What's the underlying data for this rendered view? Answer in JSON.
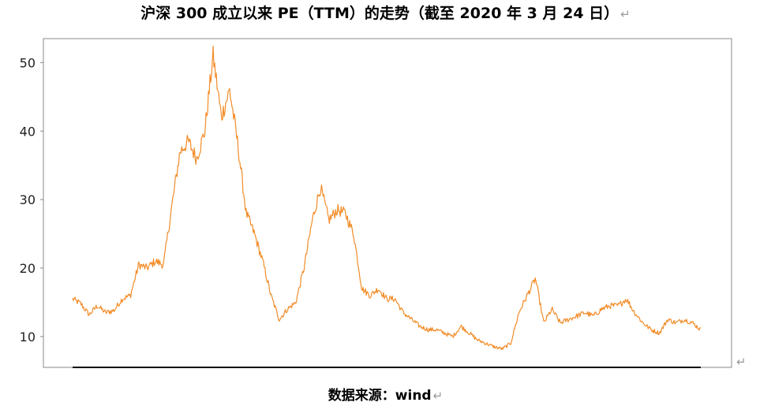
{
  "title": "沪深 300 成立以来 PE（TTM）的走势（截至 2020 年 3 月 24 日）",
  "source": "数据来源：wind",
  "return_mark": "↵",
  "colors": {
    "line": "#f28c28",
    "frame": "#888888",
    "baseline": "#000000"
  },
  "chart_data": {
    "type": "line",
    "title": "",
    "xlabel": "",
    "ylabel": "",
    "ylim": [
      5.5,
      53.5
    ],
    "yticks": [
      10,
      20,
      30,
      40,
      50
    ],
    "grid": false,
    "legend": "none",
    "x_start": "2005-04-08",
    "x_end": "2020-03-24",
    "series": [
      {
        "values": [
          15.5,
          14.8,
          13.2,
          14.5,
          13.5,
          13.8,
          15.5,
          16.0,
          20.5,
          20.0,
          21.0,
          20.5,
          29.0,
          37.0,
          38.5,
          36.0,
          40.0,
          51.0,
          42.0,
          46.0,
          38.0,
          28.0,
          25.0,
          21.0,
          16.0,
          12.5,
          14.0,
          15.0,
          20.0,
          27.0,
          31.8,
          27.0,
          28.5,
          28.0,
          25.0,
          17.0,
          16.0,
          17.0,
          15.5,
          15.5,
          13.5,
          12.5,
          11.5,
          11.0,
          11.0,
          10.5,
          10.0,
          11.5,
          10.5,
          9.5,
          9.0,
          8.5,
          8.2,
          9.0,
          13.5,
          16.0,
          18.5,
          12.0,
          14.0,
          12.0,
          12.5,
          13.0,
          13.5,
          13.0,
          14.0,
          14.5,
          14.5,
          15.5,
          13.5,
          12.0,
          11.0,
          10.5,
          12.5,
          12.0,
          12.5,
          12.0,
          11.0
        ]
      }
    ]
  }
}
